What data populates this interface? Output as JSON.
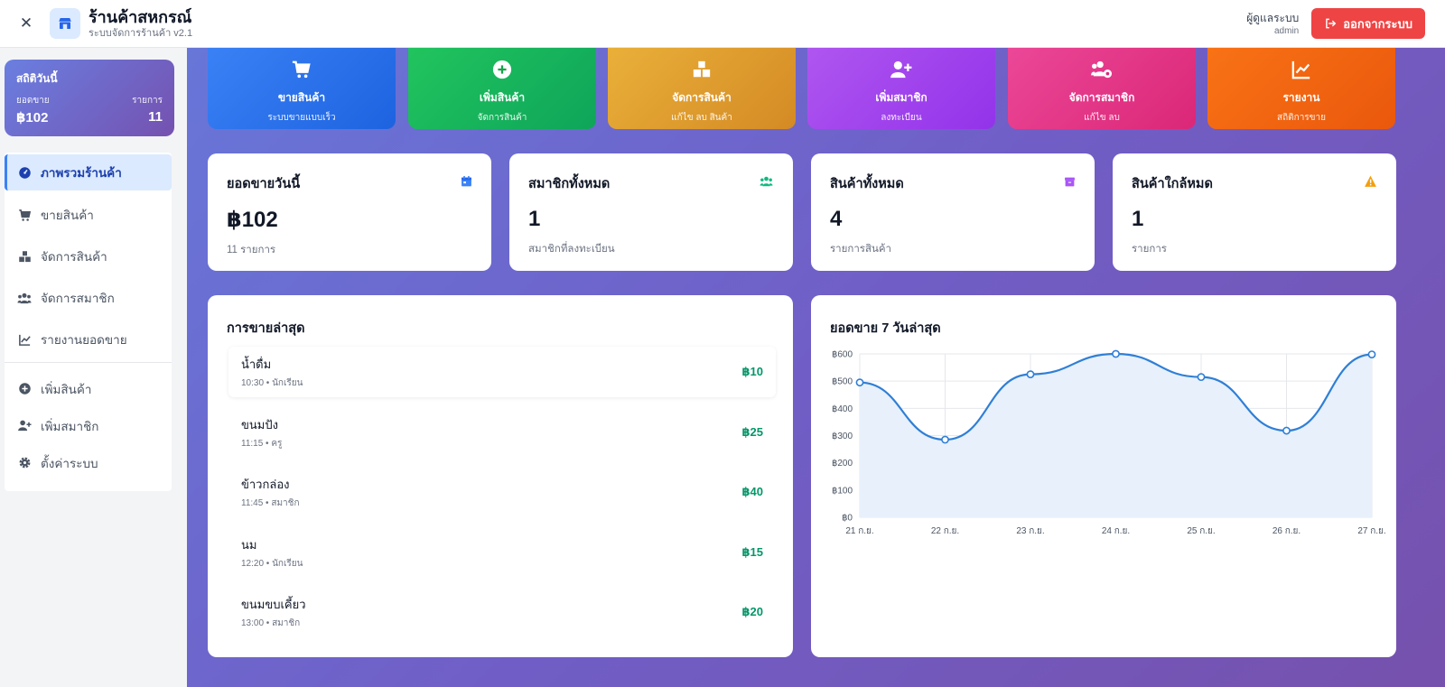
{
  "header": {
    "title": "ร้านค้าสหกรณ์",
    "subtitle": "ระบบจัดการร้านค้า v2.1",
    "user_role": "ผู้ดูแลระบบ",
    "user_name": "admin",
    "logout_label": "ออกจากระบบ"
  },
  "sidebar": {
    "stats": {
      "title": "สถิติวันนี้",
      "sales_label": "ยอดขาย",
      "count_label": "รายการ",
      "sales_value": "฿102",
      "count_value": "11"
    },
    "menu": [
      {
        "label": "ภาพรวมร้านค้า",
        "icon": "dashboard-icon",
        "active": true
      },
      {
        "label": "ขายสินค้า",
        "icon": "cart-icon"
      },
      {
        "label": "จัดการสินค้า",
        "icon": "boxes-icon"
      },
      {
        "label": "จัดการสมาชิก",
        "icon": "users-icon"
      },
      {
        "label": "รายงานยอดขาย",
        "icon": "line-chart-icon"
      }
    ],
    "menu_secondary": [
      {
        "label": "เพิ่มสินค้า",
        "icon": "plus-circle-icon"
      },
      {
        "label": "เพิ่มสมาชิก",
        "icon": "user-plus-icon"
      },
      {
        "label": "ตั้งค่าระบบ",
        "icon": "gear-icon"
      }
    ]
  },
  "quick_actions": [
    {
      "title": "ขายสินค้า",
      "sub": "ระบบขายแบบเร็ว",
      "icon": "cart-icon",
      "color_from": "#3b82f6",
      "color_to": "#1d63e0"
    },
    {
      "title": "เพิ่มสินค้า",
      "sub": "จัดการสินค้า",
      "icon": "plus-circle-icon",
      "color_from": "#22c55e",
      "color_to": "#0ea55a"
    },
    {
      "title": "จัดการสินค้า",
      "sub": "แก้ไข ลบ สินค้า",
      "icon": "boxes-icon",
      "color_from": "#eab13a",
      "color_to": "#d48a24"
    },
    {
      "title": "เพิ่มสมาชิก",
      "sub": "ลงทะเบียน",
      "icon": "user-plus-icon",
      "color_from": "#b057f0",
      "color_to": "#9333ea"
    },
    {
      "title": "จัดการสมาชิก",
      "sub": "แก้ไข ลบ",
      "icon": "users-gear-icon",
      "color_from": "#ec4899",
      "color_to": "#db2777"
    },
    {
      "title": "รายงาน",
      "sub": "สถิติการขาย",
      "icon": "line-chart-icon",
      "color_from": "#f97316",
      "color_to": "#ea580c"
    }
  ],
  "stats": [
    {
      "title": "ยอดขายวันนี้",
      "value": "฿102",
      "sub": "11 รายการ",
      "icon": "calendar-icon",
      "icon_color": "#3b82f6"
    },
    {
      "title": "สมาชิกทั้งหมด",
      "value": "1",
      "sub": "สมาชิกที่ลงทะเบียน",
      "icon": "users-icon",
      "icon_color": "#10b981"
    },
    {
      "title": "สินค้าทั้งหมด",
      "value": "4",
      "sub": "รายการสินค้า",
      "icon": "box-icon",
      "icon_color": "#a855f7"
    },
    {
      "title": "สินค้าใกล้หมด",
      "value": "1",
      "sub": "รายการ",
      "icon": "warning-icon",
      "icon_color": "#f59e0b"
    }
  ],
  "recent_sales": {
    "title": "การขายล่าสุด",
    "items": [
      {
        "name": "น้ำดื่ม",
        "meta": "10:30 • นักเรียน",
        "amount": "฿10"
      },
      {
        "name": "ขนมปัง",
        "meta": "11:15 • ครู",
        "amount": "฿25"
      },
      {
        "name": "ข้าวกล่อง",
        "meta": "11:45 • สมาชิก",
        "amount": "฿40"
      },
      {
        "name": "นม",
        "meta": "12:20 • นักเรียน",
        "amount": "฿15"
      },
      {
        "name": "ขนมขบเคี้ยว",
        "meta": "13:00 • สมาชิก",
        "amount": "฿20"
      }
    ]
  },
  "chart_panel": {
    "title": "ยอดขาย 7 วันล่าสุด"
  },
  "chart_data": {
    "type": "line",
    "title": "ยอดขาย 7 วันล่าสุด",
    "categories": [
      "21 ก.ย.",
      "22 ก.ย.",
      "23 ก.ย.",
      "24 ก.ย.",
      "25 ก.ย.",
      "26 ก.ย.",
      "27 ก.ย."
    ],
    "values": [
      495,
      285,
      525,
      600,
      515,
      318,
      598
    ],
    "ylim": [
      0,
      600
    ],
    "yticks": [
      0,
      100,
      200,
      300,
      400,
      500,
      600
    ],
    "ytick_labels": [
      "฿0",
      "฿100",
      "฿200",
      "฿300",
      "฿400",
      "฿500",
      "฿600"
    ],
    "grid": true,
    "fill": true,
    "smooth": true,
    "line_color": "#2f7fd6",
    "fill_color": "#e8f0fb"
  }
}
